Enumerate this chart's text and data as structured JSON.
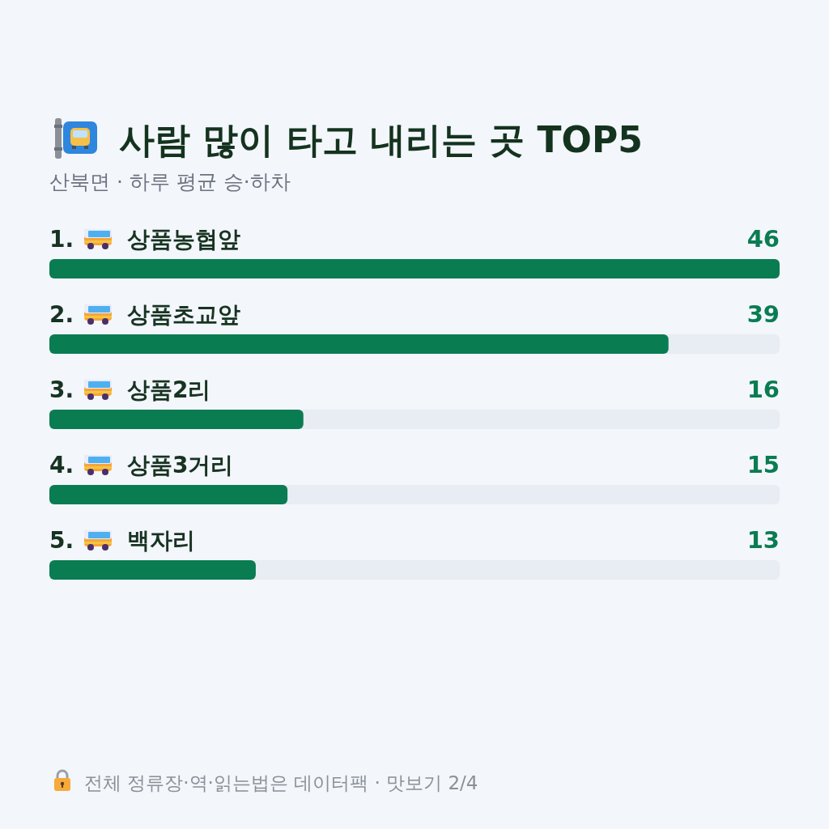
{
  "chart_data": {
    "type": "bar",
    "orientation": "horizontal",
    "title": "사람 많이 타고 내리는 곳 TOP5",
    "subtitle": "산북면 · 하루 평균 승·하차",
    "categories": [
      "1. 상품농협앞",
      "2. 상품초교앞",
      "3. 상품2리",
      "4. 상품3거리",
      "5. 백자리"
    ],
    "values": [
      46,
      39,
      16,
      15,
      13
    ],
    "color": "#0a7c52",
    "xlim": [
      0,
      46
    ],
    "tick_labels": "y",
    "data_labels": true,
    "annotations": [
      "전체 정류장·역·읽는법은 데이터팩 · 맛보기 2/4"
    ]
  }
}
